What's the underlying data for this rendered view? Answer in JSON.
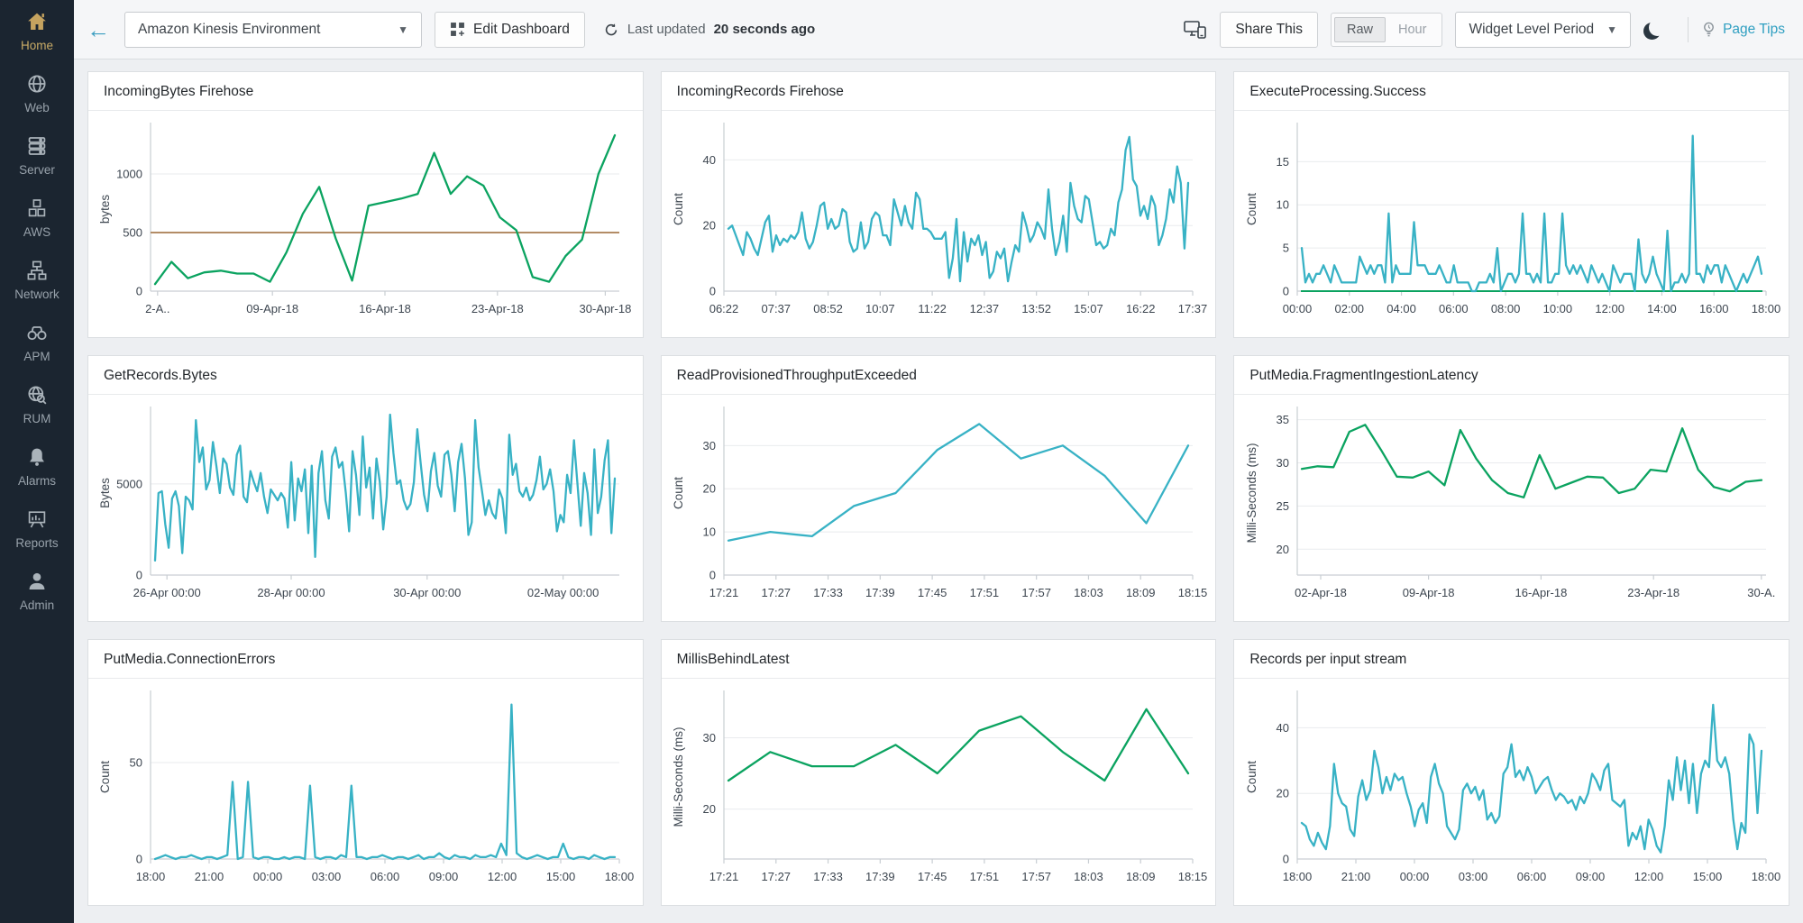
{
  "topbar": {
    "back_icon": "←",
    "dashboard_select": {
      "value": "Amazon Kinesis Environment"
    },
    "edit_dashboard_label": "Edit Dashboard",
    "last_updated_prefix": "Last updated",
    "last_updated_value": "20 seconds ago",
    "share_label": "Share This",
    "granularity": {
      "options": [
        "Raw",
        "Hour"
      ],
      "selected": "Raw"
    },
    "period_select": {
      "value": "Widget Level Period"
    },
    "page_tips_label": "Page Tips"
  },
  "sidebar": {
    "items": [
      {
        "label": "Home",
        "icon": "home-icon",
        "active": true
      },
      {
        "label": "Web",
        "icon": "web-icon",
        "active": false
      },
      {
        "label": "Server",
        "icon": "server-icon",
        "active": false
      },
      {
        "label": "AWS",
        "icon": "aws-icon",
        "active": false
      },
      {
        "label": "Network",
        "icon": "network-icon",
        "active": false
      },
      {
        "label": "APM",
        "icon": "apm-icon",
        "active": false
      },
      {
        "label": "RUM",
        "icon": "rum-icon",
        "active": false
      },
      {
        "label": "Alarms",
        "icon": "alarms-icon",
        "active": false
      },
      {
        "label": "Reports",
        "icon": "reports-icon",
        "active": false
      },
      {
        "label": "Admin",
        "icon": "admin-icon",
        "active": false
      }
    ]
  },
  "colors": {
    "green": "#0ba360",
    "teal": "#38b2c5",
    "threshold": "#a87c50"
  },
  "charts": [
    {
      "type": "line",
      "title": "IncomingBytes Firehose",
      "ylabel": "bytes",
      "ymin": 0,
      "ymax": 1400,
      "yticks": [
        0,
        500,
        1000
      ],
      "xticks": [
        "2-A..",
        "09-Apr-18",
        "16-Apr-18",
        "23-Apr-18",
        "30-Apr-18"
      ],
      "xtick_pos": [
        0.015,
        0.26,
        0.5,
        0.74,
        0.97
      ],
      "threshold": {
        "value": 500,
        "color": "threshold"
      },
      "series": [
        {
          "name": "IncomingBytes",
          "color": "green",
          "values": [
            60,
            250,
            110,
            160,
            175,
            150,
            150,
            80,
            330,
            660,
            890,
            450,
            90,
            730,
            760,
            790,
            830,
            1180,
            830,
            980,
            900,
            630,
            520,
            120,
            80,
            300,
            440,
            1000,
            1330
          ]
        }
      ]
    },
    {
      "type": "line",
      "title": "IncomingRecords Firehose",
      "ylabel": "Count",
      "ymin": 0,
      "ymax": 50,
      "yticks": [
        0,
        20,
        40
      ],
      "xticks": [
        "06:22",
        "07:37",
        "08:52",
        "10:07",
        "11:22",
        "12:37",
        "13:52",
        "15:07",
        "16:22",
        "17:37"
      ],
      "series": [
        {
          "name": "IncomingRecords",
          "color": "teal",
          "values": [
            19,
            20,
            17,
            14,
            11,
            18,
            16,
            13,
            11,
            16,
            21,
            23,
            12,
            17,
            14,
            16,
            15,
            17,
            16,
            18,
            24,
            16,
            13,
            15,
            20,
            26,
            27,
            19,
            22,
            19,
            20,
            25,
            24,
            15,
            12,
            13,
            21,
            13,
            15,
            22,
            24,
            23,
            17,
            17,
            14,
            28,
            24,
            20,
            26,
            21,
            19,
            30,
            28,
            19,
            19,
            18,
            16,
            16,
            16,
            18,
            4,
            10,
            22,
            3,
            18,
            9,
            16,
            14,
            17,
            11,
            15,
            4,
            6,
            12,
            10,
            13,
            3,
            9,
            14,
            12,
            24,
            20,
            15,
            17,
            21,
            19,
            16,
            31,
            19,
            11,
            15,
            23,
            12,
            33,
            26,
            22,
            21,
            29,
            28,
            21,
            14,
            15,
            13,
            14,
            19,
            17,
            27,
            31,
            43,
            47,
            34,
            32,
            23,
            26,
            22,
            29,
            26,
            14,
            17,
            22,
            31,
            27,
            38,
            33,
            13,
            33
          ]
        }
      ]
    },
    {
      "type": "line",
      "title": "ExecuteProcessing.Success",
      "ylabel": "Count",
      "ymin": 0,
      "ymax": 19,
      "yticks": [
        0,
        5,
        10,
        15
      ],
      "xticks": [
        "00:00",
        "02:00",
        "04:00",
        "06:00",
        "08:00",
        "10:00",
        "12:00",
        "14:00",
        "16:00",
        "18:00"
      ],
      "baseline": {
        "value": 0,
        "color": "green"
      },
      "series": [
        {
          "name": "ExecuteProcessing.Success",
          "color": "teal",
          "values": [
            5,
            1,
            2,
            1,
            2,
            2,
            3,
            2,
            1,
            3,
            2,
            1,
            1,
            1,
            1,
            1,
            4,
            3,
            2,
            3,
            2,
            3,
            3,
            1,
            9,
            1,
            3,
            2,
            2,
            2,
            2,
            8,
            3,
            3,
            3,
            2,
            2,
            2,
            3,
            2,
            1,
            1,
            3,
            1,
            1,
            1,
            1,
            0,
            0,
            1,
            1,
            1,
            2,
            1,
            5,
            0,
            1,
            2,
            2,
            1,
            2,
            9,
            2,
            2,
            1,
            2,
            1,
            9,
            1,
            1,
            2,
            2,
            9,
            3,
            2,
            3,
            2,
            3,
            2,
            1,
            3,
            2,
            1,
            2,
            1,
            0,
            3,
            2,
            1,
            2,
            2,
            2,
            0,
            6,
            2,
            1,
            2,
            4,
            2,
            1,
            0,
            7,
            0,
            1,
            1,
            2,
            1,
            2,
            18,
            2,
            2,
            1,
            3,
            2,
            3,
            3,
            1,
            3,
            2,
            1,
            0,
            1,
            2,
            1,
            2,
            3,
            4,
            2
          ]
        }
      ]
    },
    {
      "type": "line",
      "title": "GetRecords.Bytes",
      "ylabel": "Bytes",
      "ymin": 0,
      "ymax": 9000,
      "yticks": [
        0,
        5000
      ],
      "xticks": [
        "26-Apr 00:00",
        "28-Apr 00:00",
        "30-Apr 00:00",
        "02-May 00:00"
      ],
      "xtick_pos": [
        0.035,
        0.3,
        0.59,
        0.88
      ],
      "series": [
        {
          "name": "GetRecords.Bytes",
          "color": "teal",
          "values": [
            800,
            4500,
            4600,
            2800,
            1500,
            4200,
            4600,
            3800,
            1200,
            4300,
            4100,
            3600,
            8500,
            6200,
            7000,
            4700,
            5200,
            7300,
            6000,
            4500,
            6400,
            6100,
            4800,
            4400,
            6600,
            7100,
            4300,
            4000,
            5700,
            5100,
            4600,
            5600,
            4300,
            3400,
            4700,
            4400,
            4100,
            4500,
            4200,
            2600,
            6200,
            3000,
            5300,
            4600,
            5800,
            2300,
            6000,
            1000,
            5600,
            6800,
            4100,
            3100,
            6500,
            7000,
            5900,
            6200,
            4500,
            2400,
            6800,
            5500,
            3300,
            7600,
            4800,
            5900,
            3100,
            6400,
            5100,
            2500,
            4300,
            8800,
            6700,
            5000,
            5200,
            4100,
            3600,
            3900,
            5100,
            8000,
            6100,
            4400,
            3500,
            5700,
            6700,
            4900,
            4300,
            6600,
            6800,
            5500,
            3500,
            6200,
            7200,
            5300,
            2200,
            2900,
            8500,
            5900,
            4600,
            3300,
            4100,
            3400,
            3100,
            4700,
            4200,
            2300,
            7700,
            5500,
            6100,
            4600,
            4300,
            4800,
            4100,
            4400,
            5200,
            6500,
            4700,
            5000,
            5800,
            4600,
            2400,
            3300,
            2900,
            5500,
            4500,
            7400,
            5100,
            2700,
            5600,
            4500,
            2200,
            6900,
            3400,
            4300,
            6300,
            7400,
            2300,
            5300
          ]
        }
      ]
    },
    {
      "type": "line",
      "title": "ReadProvisionedThroughputExceeded",
      "ylabel": "Count",
      "ymin": 0,
      "ymax": 38,
      "yticks": [
        0,
        10,
        20,
        30
      ],
      "xticks": [
        "17:21",
        "17:27",
        "17:33",
        "17:39",
        "17:45",
        "17:51",
        "17:57",
        "18:03",
        "18:09",
        "18:15"
      ],
      "series": [
        {
          "name": "ReadProvisionedThroughputExceeded",
          "color": "teal",
          "values": [
            8,
            10,
            9,
            16,
            19,
            29,
            35,
            27,
            30,
            23,
            12,
            30
          ]
        }
      ]
    },
    {
      "type": "line",
      "title": "PutMedia.FragmentIngestionLatency",
      "ylabel": "Milli-Seconds (ms)",
      "ymin": 17,
      "ymax": 36,
      "yticks": [
        20,
        25,
        30,
        35
      ],
      "xticks": [
        "02-Apr-18",
        "09-Apr-18",
        "16-Apr-18",
        "23-Apr-18",
        "30-A."
      ],
      "xtick_pos": [
        0.05,
        0.28,
        0.52,
        0.76,
        0.99
      ],
      "series": [
        {
          "name": "PutMedia.FragmentIngestionLatency",
          "color": "green",
          "values": [
            29.3,
            29.6,
            29.5,
            33.6,
            34.4,
            31.5,
            28.4,
            28.3,
            29,
            27.4,
            33.8,
            30.5,
            28,
            26.5,
            26,
            30.9,
            27,
            27.7,
            28.4,
            28.3,
            26.5,
            27,
            29.2,
            29,
            34,
            29.2,
            27.2,
            26.7,
            27.8,
            28
          ]
        }
      ]
    },
    {
      "type": "line",
      "title": "PutMedia.ConnectionErrors",
      "ylabel": "Count",
      "ymin": 0,
      "ymax": 85,
      "yticks": [
        0,
        50
      ],
      "xticks": [
        "18:00",
        "21:00",
        "00:00",
        "03:00",
        "06:00",
        "09:00",
        "12:00",
        "15:00",
        "18:00"
      ],
      "series": [
        {
          "name": "PutMedia.ConnectionErrors",
          "color": "teal",
          "values": [
            0,
            1,
            2,
            1,
            0,
            1,
            1,
            2,
            1,
            0,
            1,
            1,
            0,
            1,
            2,
            40,
            0,
            1,
            40,
            1,
            0,
            1,
            1,
            0,
            0,
            1,
            0,
            1,
            1,
            0,
            38,
            1,
            0,
            1,
            1,
            0,
            2,
            1,
            38,
            1,
            1,
            0,
            1,
            1,
            2,
            1,
            0,
            1,
            1,
            0,
            1,
            2,
            0,
            1,
            1,
            3,
            1,
            0,
            2,
            1,
            1,
            0,
            2,
            1,
            1,
            2,
            1,
            8,
            2,
            80,
            3,
            1,
            0,
            1,
            2,
            1,
            0,
            1,
            1,
            8,
            1,
            0,
            1,
            1,
            0,
            2,
            1,
            0,
            1,
            1
          ]
        }
      ]
    },
    {
      "type": "line",
      "title": "MillisBehindLatest",
      "ylabel": "Milli-Seconds (ms)",
      "ymin": 13,
      "ymax": 36,
      "yticks": [
        20,
        30
      ],
      "xticks": [
        "17:21",
        "17:27",
        "17:33",
        "17:39",
        "17:45",
        "17:51",
        "17:57",
        "18:03",
        "18:09",
        "18:15"
      ],
      "series": [
        {
          "name": "MillisBehindLatest",
          "color": "green",
          "values": [
            24,
            28,
            26,
            26,
            29,
            25,
            31,
            33,
            28,
            24,
            34,
            25
          ]
        }
      ]
    },
    {
      "type": "line",
      "title": "Records per input stream",
      "ylabel": "Count",
      "ymin": 0,
      "ymax": 50,
      "yticks": [
        0,
        20,
        40
      ],
      "xticks": [
        "18:00",
        "21:00",
        "00:00",
        "03:00",
        "06:00",
        "09:00",
        "12:00",
        "15:00",
        "18:00"
      ],
      "series": [
        {
          "name": "Records per input stream",
          "color": "teal",
          "values": [
            11,
            10,
            6,
            4,
            8,
            5,
            3,
            10,
            29,
            20,
            17,
            16,
            9,
            7,
            19,
            24,
            18,
            21,
            33,
            28,
            20,
            25,
            21,
            26,
            24,
            25,
            20,
            16,
            10,
            15,
            17,
            11,
            25,
            29,
            23,
            20,
            10,
            8,
            6,
            9,
            21,
            23,
            20,
            22,
            18,
            21,
            12,
            14,
            11,
            13,
            26,
            28,
            35,
            25,
            27,
            24,
            28,
            25,
            20,
            22,
            24,
            25,
            21,
            18,
            20,
            19,
            17,
            18,
            15,
            19,
            17,
            20,
            26,
            24,
            21,
            27,
            29,
            18,
            17,
            16,
            18,
            4,
            8,
            6,
            10,
            3,
            12,
            9,
            4,
            2,
            10,
            24,
            18,
            31,
            21,
            30,
            17,
            29,
            14,
            26,
            30,
            28,
            47,
            30,
            28,
            31,
            26,
            12,
            3,
            11,
            8,
            38,
            35,
            14,
            33
          ]
        }
      ]
    }
  ]
}
